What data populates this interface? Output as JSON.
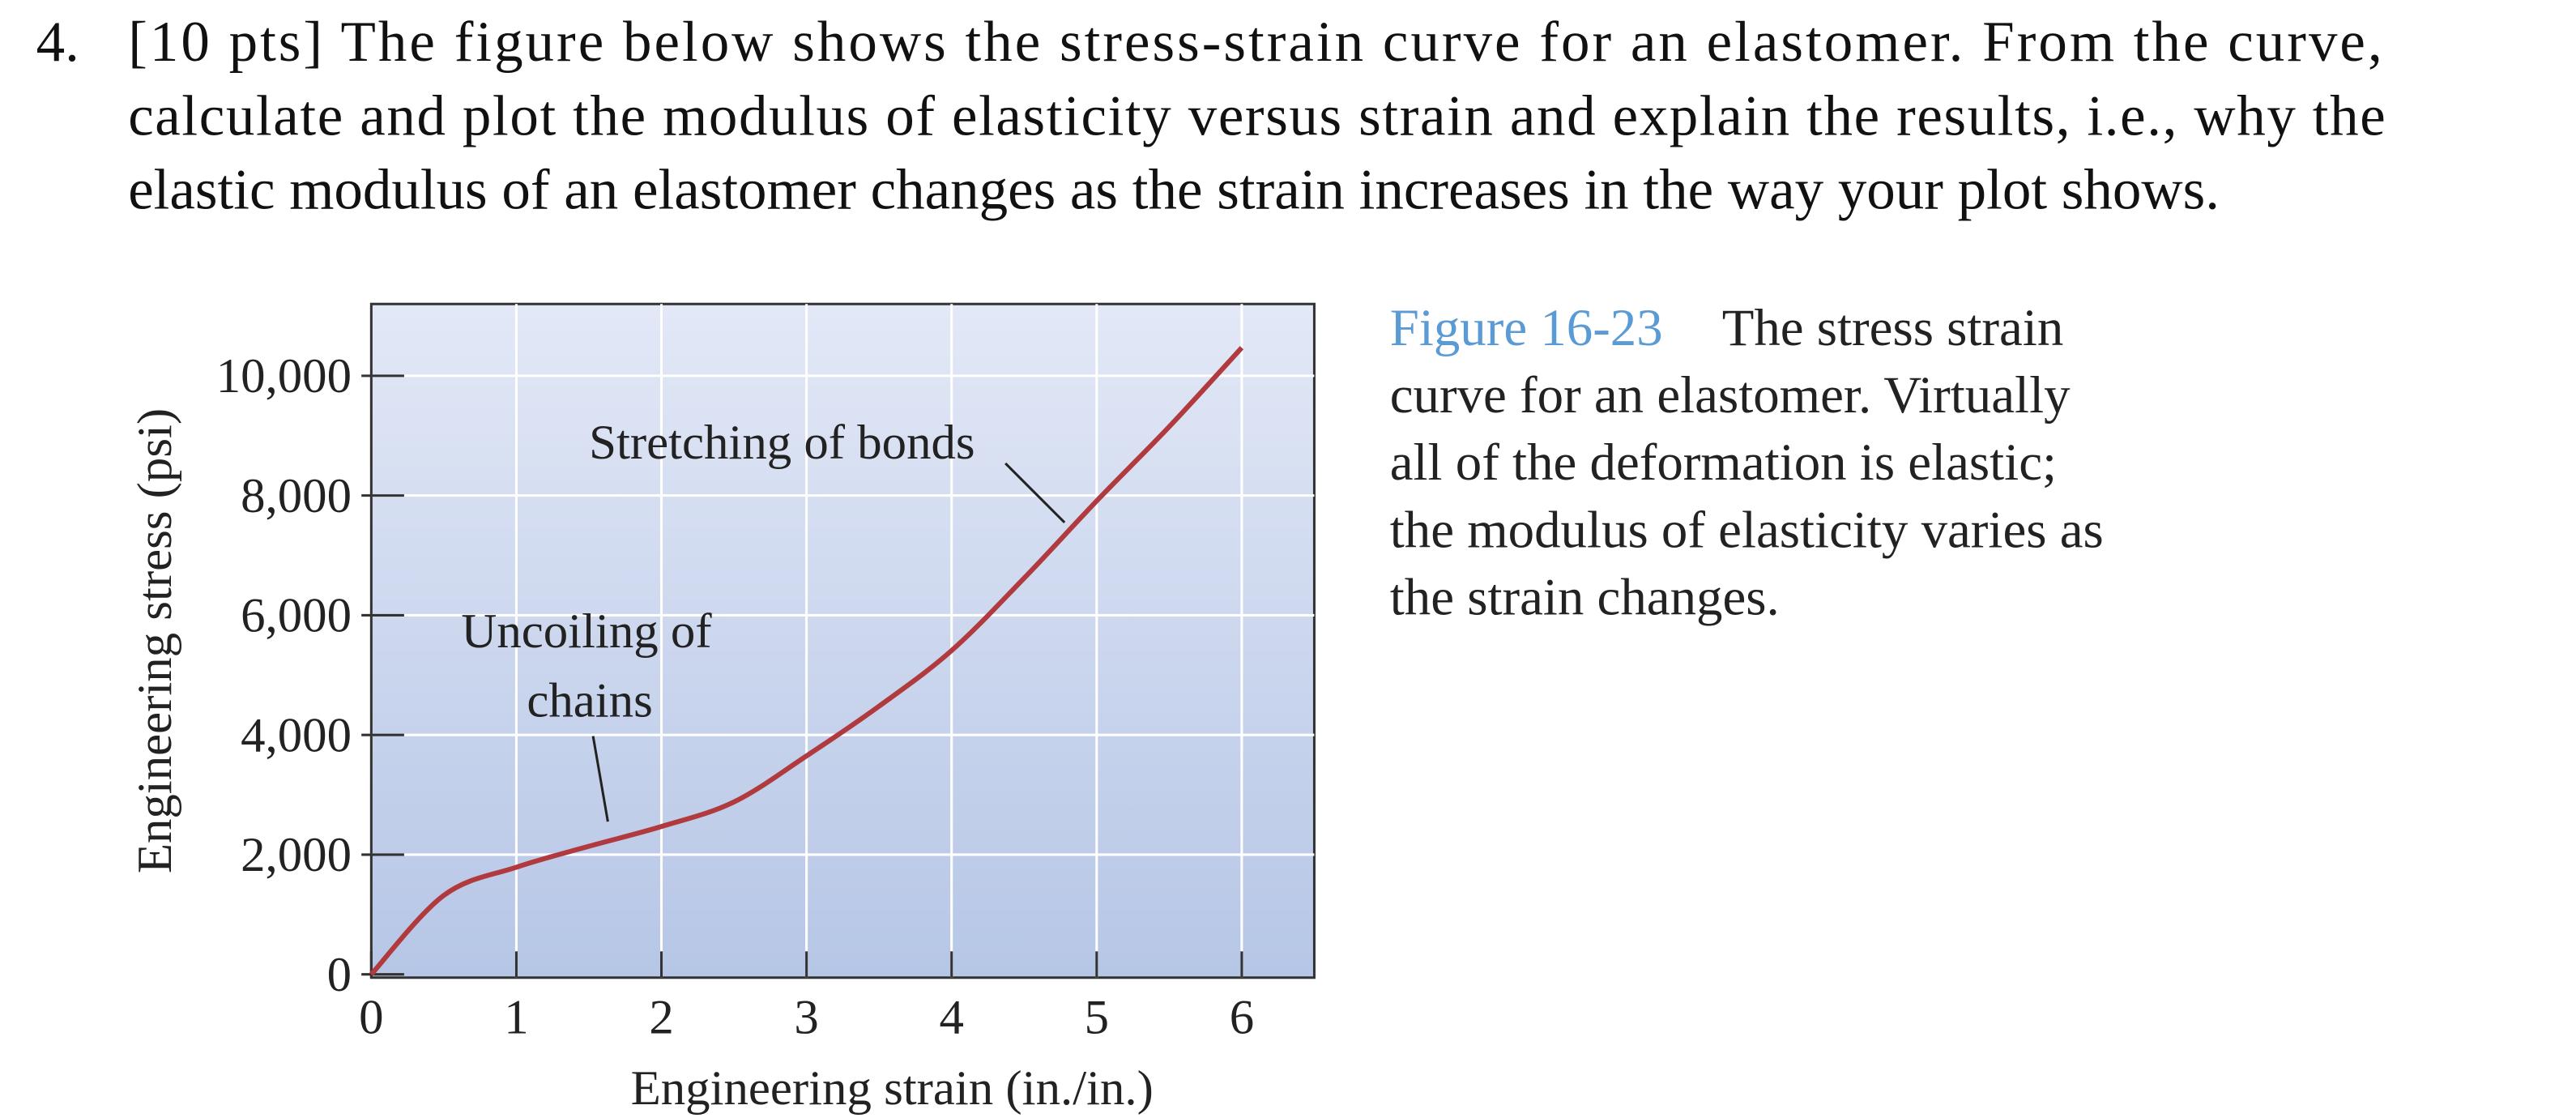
{
  "question": {
    "number": "4.",
    "lines": [
      "[10 pts] The figure below shows the stress-strain curve for an elastomer. From the curve,",
      "calculate and plot the modulus of elasticity versus strain and explain the results, i.e., why the",
      "elastic modulus of an elastomer changes as the strain increases in the way your plot shows."
    ]
  },
  "caption": {
    "label": "Figure 16-23",
    "lines": [
      "The stress strain",
      "curve for an elastomer. Virtually",
      "all of the deformation is elastic;",
      "the modulus of elasticity varies as",
      "the strain changes."
    ]
  },
  "chart_data": {
    "type": "line",
    "x_label": "Engineering strain (in./in.)",
    "y_label": "Engineering stress (psi)",
    "annotations": [
      {
        "lines": [
          "Stretching of bonds"
        ]
      },
      {
        "lines": [
          "Uncoiling of",
          "chains"
        ]
      }
    ],
    "x": [
      0,
      0.5,
      1,
      1.5,
      2,
      2.5,
      3,
      3.5,
      4,
      4.5,
      5,
      5.5,
      6
    ],
    "values": [
      0,
      1320,
      1790,
      2140,
      2470,
      2880,
      3650,
      4480,
      5410,
      6620,
      7910,
      9150,
      10470
    ],
    "color": "#b03a3e",
    "xlim": [
      0,
      6.5
    ],
    "ylim": [
      0,
      11200
    ],
    "xticks": [
      0,
      1,
      2,
      3,
      4,
      5,
      6
    ],
    "yticks": [
      0,
      {
        "value": 2000,
        "label": "2,000"
      },
      {
        "value": 4000,
        "label": "4,000"
      },
      {
        "value": 6000,
        "label": "6,000"
      },
      {
        "value": 8000,
        "label": "8,000"
      },
      {
        "value": 10000,
        "label": "10,000"
      }
    ],
    "grid": true
  }
}
